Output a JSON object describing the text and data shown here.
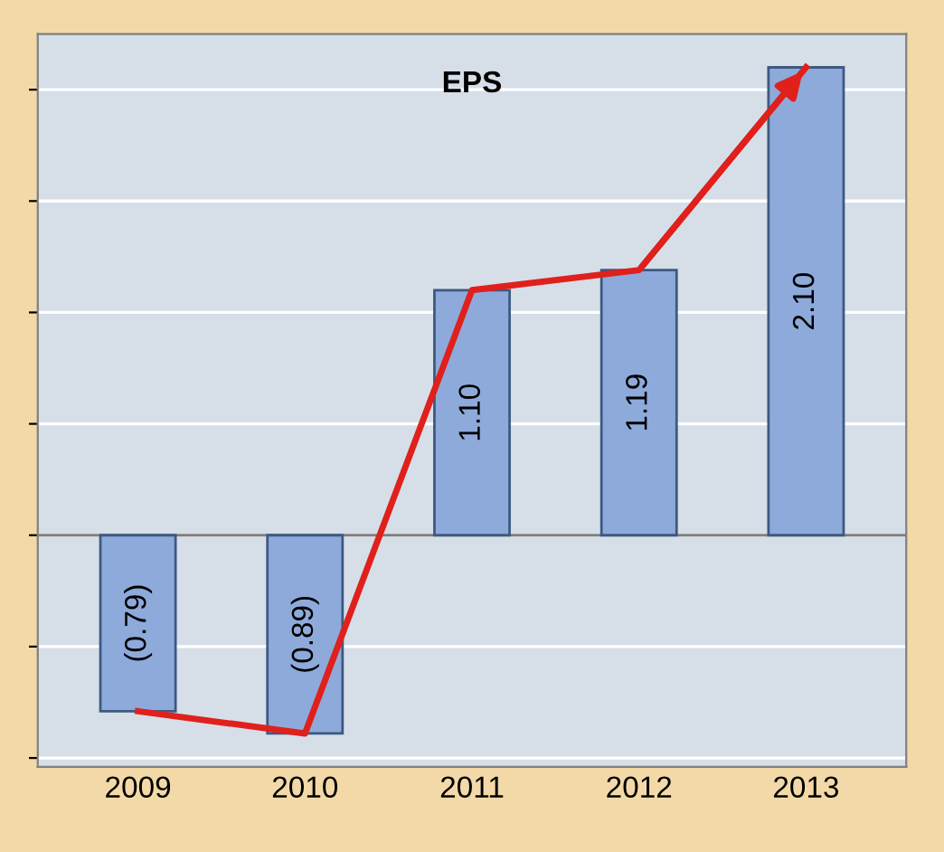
{
  "chart_data": {
    "type": "bar",
    "title": "EPS",
    "categories": [
      "2009",
      "2010",
      "2011",
      "2012",
      "2013"
    ],
    "series": [
      {
        "color": "#8eaadb",
        "values": [
          -0.79,
          -0.89,
          1.1,
          1.19,
          2.1
        ],
        "value_labels": [
          "(0.79)",
          "(0.89)",
          "1.10",
          "1.19",
          "2.10"
        ]
      },
      {
        "type": "line",
        "color": "#e0201b",
        "values": [
          -0.79,
          -0.89,
          1.1,
          1.19,
          2.1
        ]
      }
    ],
    "grid": "y",
    "tick_labels": "x",
    "marker": "none",
    "line_style": "solid"
  }
}
